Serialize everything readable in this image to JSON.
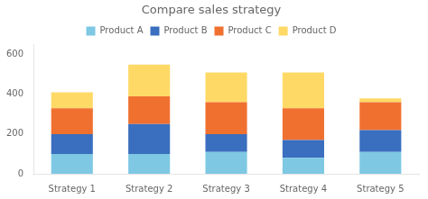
{
  "chart_data": {
    "type": "bar",
    "stacked": true,
    "title": "Compare sales strategy",
    "categories": [
      "Strategy 1",
      "Strategy 2",
      "Strategy 3",
      "Strategy 4",
      "Strategy 5"
    ],
    "series": [
      {
        "name": "Product A",
        "color": "#7EC8E3",
        "values": [
          100,
          100,
          110,
          80,
          110
        ]
      },
      {
        "name": "Product B",
        "color": "#3A6EBF",
        "values": [
          100,
          150,
          90,
          90,
          110
        ]
      },
      {
        "name": "Product C",
        "color": "#F07030",
        "values": [
          130,
          140,
          160,
          160,
          140
        ]
      },
      {
        "name": "Product D",
        "color": "#FFD966",
        "values": [
          80,
          160,
          150,
          180,
          20
        ]
      }
    ],
    "ylim": [
      0,
      650
    ],
    "yticks": [
      0,
      200,
      400,
      600
    ],
    "grid": false,
    "legend": "top"
  }
}
